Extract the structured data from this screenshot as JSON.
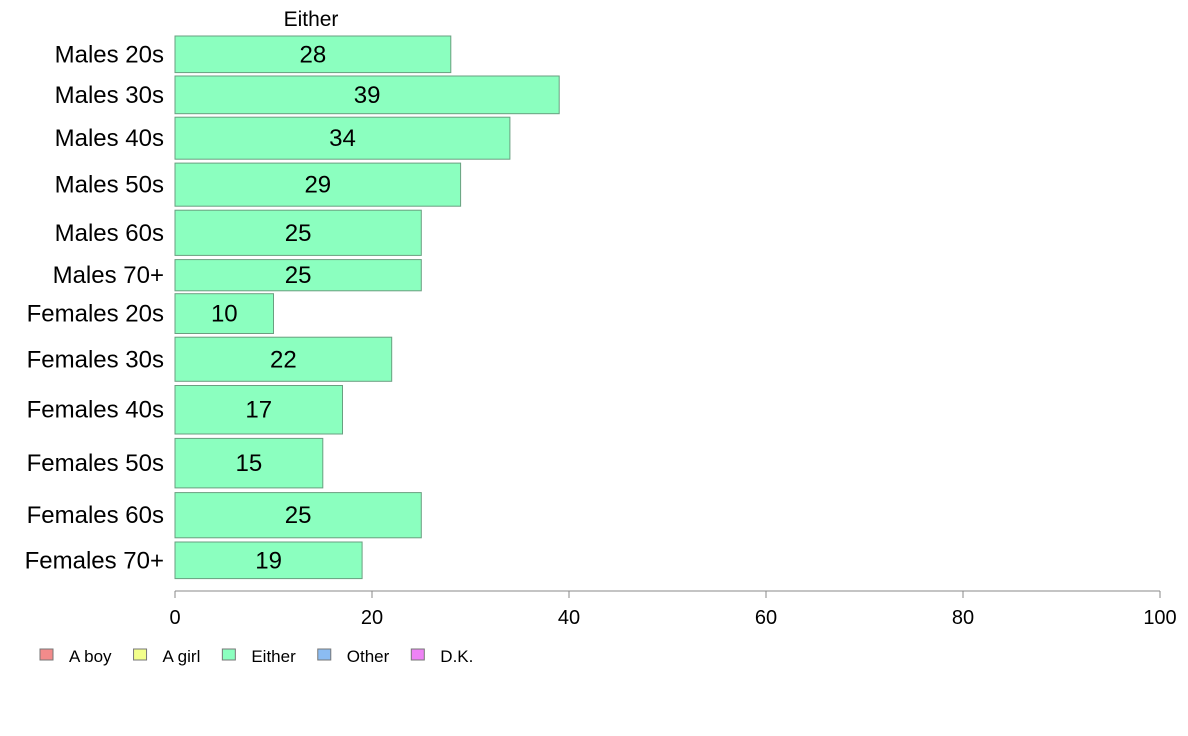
{
  "chart_data": {
    "type": "bar",
    "orientation": "horizontal",
    "title": "Either",
    "categories": [
      "Males 20s",
      "Males 30s",
      "Males 40s",
      "Males 50s",
      "Males 60s",
      "Males 70+",
      "Females 20s",
      "Females 30s",
      "Females 40s",
      "Females 50s",
      "Females 60s",
      "Females 70+"
    ],
    "series": [
      {
        "name": "Either",
        "values": [
          28,
          39,
          34,
          29,
          25,
          25,
          10,
          22,
          17,
          15,
          25,
          19
        ]
      }
    ],
    "bar_weights": [
      34,
      35,
      39,
      40,
      42,
      29,
      37,
      41,
      45,
      46,
      42,
      34
    ],
    "xlim": [
      0,
      100
    ],
    "xticks": [
      0,
      20,
      40,
      60,
      80,
      100
    ],
    "xlabel": "",
    "ylabel": "",
    "grid": false,
    "legend": {
      "placement": "bottom-left",
      "entries": [
        {
          "label": "A boy",
          "color": "#f28b8b"
        },
        {
          "label": "A girl",
          "color": "#f2ff8b"
        },
        {
          "label": "Either",
          "color": "#8bffbf"
        },
        {
          "label": "Other",
          "color": "#8bbcf2"
        },
        {
          "label": "D.K.",
          "color": "#ee82f5"
        }
      ]
    },
    "colors": {
      "bar_fill": "#8bffbf",
      "bar_stroke": "#6a9f80",
      "axis": "#888888"
    }
  }
}
